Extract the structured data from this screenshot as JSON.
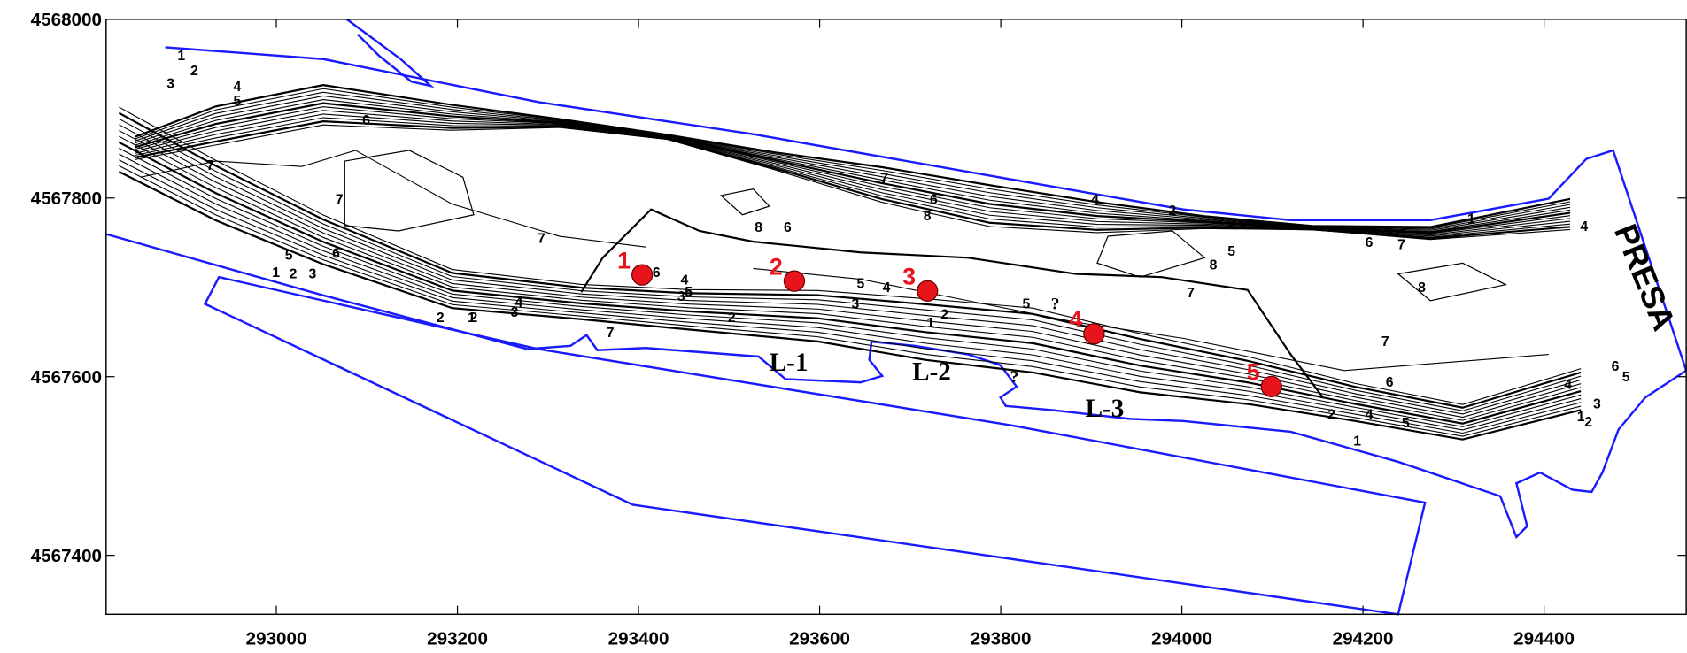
{
  "map": {
    "xlim": [
      292812,
      294557
    ],
    "ylim": [
      4567334,
      4568000
    ],
    "xticks": [
      293000,
      293200,
      293400,
      293600,
      293800,
      294000,
      294200,
      294400
    ],
    "yticks": [
      4567400,
      4567600,
      4567800,
      4568000
    ],
    "points": [
      {
        "label": "1",
        "x": 293404,
        "y": 4567714
      },
      {
        "label": "2",
        "x": 293572,
        "y": 4567707
      },
      {
        "label": "3",
        "x": 293719,
        "y": 4567696
      },
      {
        "label": "4",
        "x": 293903,
        "y": 4567648
      },
      {
        "label": "5",
        "x": 294099,
        "y": 4567589
      }
    ],
    "point_color": "#e8141c",
    "area_labels": [
      "L-1",
      "L-2",
      "L-3",
      "PRESA",
      "?",
      "?"
    ],
    "contour_labels": [
      "1",
      "2",
      "3",
      "4",
      "5",
      "6",
      "7",
      "7",
      "7",
      "6",
      "5",
      "2",
      "3",
      "1",
      "2",
      "6",
      "5",
      "4",
      "3",
      "2",
      "1",
      "5",
      "4",
      "3",
      "2",
      "7",
      "8",
      "6",
      "7",
      "6",
      "5",
      "4",
      "3",
      "2",
      "1",
      "8",
      "7",
      "8",
      "5",
      "4",
      "2",
      "1",
      "7",
      "6",
      "8",
      "7",
      "6",
      "5",
      "4",
      "2",
      "1",
      "6",
      "5",
      "4",
      "3",
      "2",
      "1",
      "4"
    ]
  }
}
